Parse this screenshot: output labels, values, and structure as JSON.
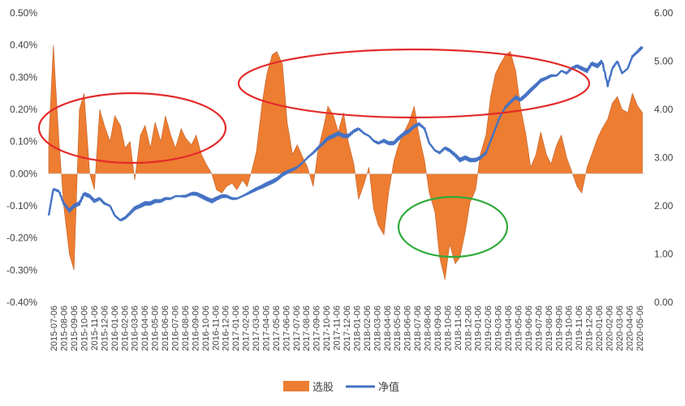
{
  "chart_data": {
    "type": "area+line",
    "title": "",
    "xlabel": "",
    "ylabel_left": "",
    "ylabel_right": "",
    "left_axis": {
      "ylim": [
        -0.004,
        0.005
      ],
      "tick_labels": [
        "0.50%",
        "0.40%",
        "0.30%",
        "0.20%",
        "0.10%",
        "0.00%",
        "-0.10%",
        "-0.20%",
        "-0.30%",
        "-0.40%"
      ],
      "tick_values": [
        0.005,
        0.004,
        0.003,
        0.002,
        0.001,
        0.0,
        -0.001,
        -0.002,
        -0.003,
        -0.004
      ]
    },
    "right_axis": {
      "ylim": [
        0,
        6
      ],
      "tick_labels": [
        "6.00",
        "5.00",
        "4.00",
        "3.00",
        "2.00",
        "1.00",
        "0.00"
      ],
      "tick_values": [
        6,
        5,
        4,
        3,
        2,
        1,
        0
      ]
    },
    "x_tick_labels": [
      "2015-07-06",
      "2015-08-06",
      "2015-09-06",
      "2015-10-06",
      "2015-11-06",
      "2015-12-06",
      "2016-01-06",
      "2016-02-06",
      "2016-03-06",
      "2016-04-06",
      "2016-05-06",
      "2016-06-06",
      "2016-07-06",
      "2016-08-06",
      "2016-09-06",
      "2016-10-06",
      "2016-11-06",
      "2016-12-06",
      "2017-01-06",
      "2017-02-06",
      "2017-03-06",
      "2017-04-06",
      "2017-05-06",
      "2017-06-06",
      "2017-07-06",
      "2017-08-06",
      "2017-09-06",
      "2017-10-06",
      "2017-11-06",
      "2017-12-06",
      "2018-01-06",
      "2018-02-06",
      "2018-03-06",
      "2018-04-06",
      "2018-05-06",
      "2018-06-06",
      "2018-07-06",
      "2018-08-06",
      "2018-09-06",
      "2018-10-06",
      "2018-11-06",
      "2018-12-06",
      "2019-01-06",
      "2019-02-06",
      "2019-03-06",
      "2019-04-06",
      "2019-05-06",
      "2019-06-06",
      "2019-07-06",
      "2019-08-06",
      "2019-09-06",
      "2019-10-06",
      "2019-11-06",
      "2019-12-06",
      "2020-01-06",
      "2020-02-06",
      "2020-03-06",
      "2020-04-06",
      "2020-05-06"
    ],
    "series": [
      {
        "name": "选股",
        "axis": "left",
        "kind": "area",
        "color": "#ED7D31",
        "x": [
          "2015-07-06",
          "2015-07-20",
          "2015-08-06",
          "2015-08-20",
          "2015-09-06",
          "2015-09-20",
          "2015-10-06",
          "2015-10-20",
          "2015-11-06",
          "2015-11-20",
          "2015-12-06",
          "2015-12-20",
          "2016-01-06",
          "2016-01-20",
          "2016-02-06",
          "2016-02-20",
          "2016-03-06",
          "2016-03-20",
          "2016-04-06",
          "2016-04-20",
          "2016-05-06",
          "2016-05-20",
          "2016-06-06",
          "2016-06-20",
          "2016-07-06",
          "2016-07-20",
          "2016-08-06",
          "2016-08-20",
          "2016-09-06",
          "2016-09-20",
          "2016-10-06",
          "2016-10-20",
          "2016-11-06",
          "2016-11-20",
          "2016-12-06",
          "2016-12-20",
          "2017-01-06",
          "2017-01-20",
          "2017-02-06",
          "2017-02-20",
          "2017-03-06",
          "2017-03-20",
          "2017-04-06",
          "2017-04-20",
          "2017-05-06",
          "2017-05-20",
          "2017-06-06",
          "2017-06-20",
          "2017-07-06",
          "2017-07-20",
          "2017-08-06",
          "2017-08-20",
          "2017-09-06",
          "2017-09-20",
          "2017-10-06",
          "2017-10-20",
          "2017-11-06",
          "2017-11-20",
          "2017-12-06",
          "2017-12-20",
          "2018-01-06",
          "2018-01-20",
          "2018-02-06",
          "2018-02-20",
          "2018-03-06",
          "2018-03-20",
          "2018-04-06",
          "2018-04-20",
          "2018-05-06",
          "2018-05-20",
          "2018-06-06",
          "2018-06-20",
          "2018-07-06",
          "2018-07-20",
          "2018-08-06",
          "2018-08-20",
          "2018-09-06",
          "2018-09-20",
          "2018-10-06",
          "2018-10-20",
          "2018-11-06",
          "2018-11-20",
          "2018-12-06",
          "2018-12-20",
          "2019-01-06",
          "2019-01-20",
          "2019-02-06",
          "2019-02-20",
          "2019-03-06",
          "2019-03-20",
          "2019-04-06",
          "2019-04-20",
          "2019-05-06",
          "2019-05-20",
          "2019-06-06",
          "2019-06-20",
          "2019-07-06",
          "2019-07-20",
          "2019-08-06",
          "2019-08-20",
          "2019-09-06",
          "2019-09-20",
          "2019-10-06",
          "2019-10-20",
          "2019-11-06",
          "2019-11-20",
          "2019-12-06",
          "2019-12-20",
          "2020-01-06",
          "2020-01-20",
          "2020-02-06",
          "2020-02-20",
          "2020-03-06",
          "2020-03-20",
          "2020-04-06",
          "2020-04-20",
          "2020-05-06",
          "2020-05-20"
        ],
        "values": [
          0.001,
          0.004,
          0.001,
          -0.001,
          -0.0025,
          -0.003,
          0.002,
          0.0025,
          0.0,
          -0.0005,
          0.002,
          0.0015,
          0.001,
          0.0018,
          0.0015,
          0.0008,
          0.001,
          -0.0002,
          0.0012,
          0.0015,
          0.0008,
          0.0016,
          0.001,
          0.0018,
          0.0012,
          0.0008,
          0.0014,
          0.0011,
          0.0009,
          0.0012,
          0.0006,
          0.0003,
          0.0,
          -0.0005,
          -0.0006,
          -0.0004,
          -0.0003,
          -0.0005,
          -0.0002,
          -0.0004,
          0.0001,
          0.0007,
          0.0022,
          0.0031,
          0.0037,
          0.0038,
          0.0034,
          0.0016,
          0.0006,
          0.0009,
          0.0005,
          0.0002,
          -0.0004,
          0.0007,
          0.0014,
          0.0021,
          0.0018,
          0.0013,
          0.0019,
          0.001,
          0.0003,
          -0.0008,
          -0.0003,
          0.0002,
          -0.0011,
          -0.0016,
          -0.0019,
          -0.0006,
          0.0004,
          0.0009,
          0.0013,
          0.0016,
          0.0021,
          0.0012,
          0.0004,
          -0.0006,
          -0.0012,
          -0.0026,
          -0.0033,
          -0.0022,
          -0.0028,
          -0.0026,
          -0.0018,
          -0.0009,
          -0.0005,
          0.0006,
          0.0012,
          0.0024,
          0.0031,
          0.0034,
          0.0037,
          0.0038,
          0.0032,
          0.0021,
          0.0012,
          0.0002,
          0.0006,
          0.0013,
          0.0006,
          0.0003,
          0.0009,
          0.0012,
          0.0005,
          0.0001,
          -0.0004,
          -0.0006,
          0.0002,
          0.0006,
          0.0011,
          0.0014,
          0.0017,
          0.0022,
          0.0024,
          0.002,
          0.0019,
          0.0025,
          0.0021,
          0.0019
        ]
      },
      {
        "name": "净值",
        "axis": "right",
        "kind": "line",
        "color": "#4472C4",
        "x": [
          "2015-07-06",
          "2015-07-20",
          "2015-08-06",
          "2015-08-20",
          "2015-09-06",
          "2015-09-20",
          "2015-10-06",
          "2015-10-20",
          "2015-11-06",
          "2015-11-20",
          "2015-12-06",
          "2015-12-20",
          "2016-01-06",
          "2016-01-20",
          "2016-02-06",
          "2016-02-20",
          "2016-03-06",
          "2016-03-20",
          "2016-04-06",
          "2016-04-20",
          "2016-05-06",
          "2016-05-20",
          "2016-06-06",
          "2016-06-20",
          "2016-07-06",
          "2016-07-20",
          "2016-08-06",
          "2016-08-20",
          "2016-09-06",
          "2016-09-20",
          "2016-10-06",
          "2016-10-20",
          "2016-11-06",
          "2016-11-20",
          "2016-12-06",
          "2016-12-20",
          "2017-01-06",
          "2017-01-20",
          "2017-02-06",
          "2017-02-20",
          "2017-03-06",
          "2017-03-20",
          "2017-04-06",
          "2017-04-20",
          "2017-05-06",
          "2017-05-20",
          "2017-06-06",
          "2017-06-20",
          "2017-07-06",
          "2017-07-20",
          "2017-08-06",
          "2017-08-20",
          "2017-09-06",
          "2017-09-20",
          "2017-10-06",
          "2017-10-20",
          "2017-11-06",
          "2017-11-20",
          "2017-12-06",
          "2017-12-20",
          "2018-01-06",
          "2018-01-20",
          "2018-02-06",
          "2018-02-20",
          "2018-03-06",
          "2018-03-20",
          "2018-04-06",
          "2018-04-20",
          "2018-05-06",
          "2018-05-20",
          "2018-06-06",
          "2018-06-20",
          "2018-07-06",
          "2018-07-20",
          "2018-08-06",
          "2018-08-20",
          "2018-09-06",
          "2018-09-20",
          "2018-10-06",
          "2018-10-20",
          "2018-11-06",
          "2018-11-20",
          "2018-12-06",
          "2018-12-20",
          "2019-01-06",
          "2019-01-20",
          "2019-02-06",
          "2019-02-20",
          "2019-03-06",
          "2019-03-20",
          "2019-04-06",
          "2019-04-20",
          "2019-05-06",
          "2019-05-20",
          "2019-06-06",
          "2019-06-20",
          "2019-07-06",
          "2019-07-20",
          "2019-08-06",
          "2019-08-20",
          "2019-09-06",
          "2019-09-20",
          "2019-10-06",
          "2019-10-20",
          "2019-11-06",
          "2019-11-20",
          "2019-12-06",
          "2019-12-20",
          "2020-01-06",
          "2020-01-20",
          "2020-02-06",
          "2020-02-20",
          "2020-03-06",
          "2020-03-20",
          "2020-04-06",
          "2020-04-20",
          "2020-05-06",
          "2020-05-20"
        ],
        "values": [
          1.8,
          2.35,
          2.3,
          2.05,
          1.9,
          2.0,
          2.05,
          2.25,
          2.2,
          2.1,
          2.15,
          2.05,
          2.0,
          1.8,
          1.7,
          1.75,
          1.85,
          1.95,
          2.0,
          2.05,
          2.05,
          2.1,
          2.1,
          2.15,
          2.15,
          2.2,
          2.2,
          2.2,
          2.25,
          2.25,
          2.2,
          2.15,
          2.1,
          2.15,
          2.2,
          2.2,
          2.15,
          2.15,
          2.2,
          2.25,
          2.3,
          2.35,
          2.4,
          2.45,
          2.5,
          2.55,
          2.65,
          2.7,
          2.75,
          2.8,
          2.9,
          3.0,
          3.1,
          3.2,
          3.3,
          3.4,
          3.45,
          3.5,
          3.45,
          3.45,
          3.55,
          3.6,
          3.5,
          3.45,
          3.35,
          3.3,
          3.35,
          3.3,
          3.3,
          3.4,
          3.5,
          3.55,
          3.65,
          3.7,
          3.6,
          3.3,
          3.15,
          3.1,
          3.2,
          3.15,
          3.05,
          2.95,
          3.0,
          2.95,
          2.95,
          3.0,
          3.1,
          3.35,
          3.6,
          3.85,
          4.05,
          4.15,
          4.25,
          4.2,
          4.3,
          4.4,
          4.5,
          4.6,
          4.65,
          4.7,
          4.7,
          4.8,
          4.75,
          4.85,
          4.9,
          4.85,
          4.8,
          4.95,
          4.9,
          5.0,
          4.5,
          4.85,
          5.0,
          4.75,
          4.85,
          5.1,
          5.2,
          5.3
        ]
      }
    ],
    "legend": {
      "position": "bottom",
      "entries": [
        {
          "label": "选股",
          "color": "#ED7D31"
        },
        {
          "label": "净值",
          "color": "#4472C4"
        }
      ]
    },
    "annotations": [
      {
        "shape": "ellipse",
        "color": "#E32A2A"
      },
      {
        "shape": "ellipse",
        "color": "#E32A2A"
      },
      {
        "shape": "ellipse",
        "color": "#2EAA3A"
      }
    ],
    "grid": false
  }
}
